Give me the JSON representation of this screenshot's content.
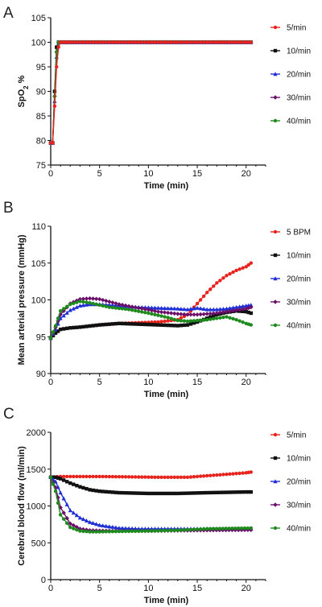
{
  "chart_data": [
    {
      "type": "line",
      "panel": "A",
      "xlabel": "Time (min)",
      "ylabel": "SpO",
      "ylabel_sub": "2",
      "ylabel_suffix": " %",
      "xlim": [
        0,
        22
      ],
      "ylim": [
        75,
        105
      ],
      "xticks": [
        0,
        5,
        10,
        15,
        20
      ],
      "yticks": [
        75,
        80,
        85,
        90,
        95,
        100,
        105
      ],
      "series": [
        {
          "name": "5/min",
          "color": "#e8231e",
          "marker": "circle",
          "x": [
            0,
            0.2,
            0.4,
            0.6,
            0.8,
            1,
            1.2,
            1.5,
            2,
            4,
            8,
            12,
            16,
            20.5
          ],
          "y": [
            79.5,
            79.5,
            87,
            95,
            99,
            100,
            100,
            100,
            100,
            100,
            100,
            100,
            100,
            100
          ]
        },
        {
          "name": "10/min",
          "color": "#111111",
          "marker": "square",
          "x": [
            0,
            0.2,
            0.4,
            0.6,
            0.8,
            1,
            1.2,
            1.5,
            2,
            4,
            8,
            12,
            16,
            20.5
          ],
          "y": [
            79.5,
            79.5,
            90,
            99,
            100,
            100,
            100,
            100,
            100,
            100,
            100,
            100,
            100,
            100
          ]
        },
        {
          "name": "20/min",
          "color": "#1f2fd6",
          "marker": "triangle",
          "x": [
            0,
            0.2,
            0.4,
            0.6,
            0.8,
            1,
            1.2,
            1.5,
            2,
            4,
            8,
            12,
            16,
            20.5
          ],
          "y": [
            79.5,
            79.5,
            88,
            97,
            100,
            100,
            100,
            100,
            100,
            100,
            100,
            100,
            100,
            100
          ]
        },
        {
          "name": "30/min",
          "color": "#6b0f6b",
          "marker": "diamond",
          "x": [
            0,
            0.2,
            0.4,
            0.6,
            0.8,
            1,
            1.2,
            1.5,
            2,
            4,
            8,
            12,
            16,
            20.5
          ],
          "y": [
            79.5,
            79.5,
            89,
            98,
            100,
            100,
            100,
            100,
            100,
            100,
            100,
            100,
            100,
            100
          ]
        },
        {
          "name": "40/min",
          "color": "#1e8a1e",
          "marker": "circle",
          "x": [
            0,
            0.2,
            0.4,
            0.6,
            0.8,
            1,
            1.2,
            1.5,
            2,
            4,
            8,
            12,
            16,
            20.5
          ],
          "y": [
            79.5,
            79.5,
            89,
            98,
            100,
            100,
            100,
            100,
            100,
            100,
            100,
            100,
            100,
            100
          ]
        }
      ]
    },
    {
      "type": "line",
      "panel": "B",
      "xlabel": "Time (min)",
      "ylabel": "Mean arterial pressure (mmHg)",
      "xlim": [
        0,
        22
      ],
      "ylim": [
        90,
        110
      ],
      "xticks": [
        0,
        5,
        10,
        15,
        20
      ],
      "yticks": [
        90,
        95,
        100,
        105,
        110
      ],
      "series": [
        {
          "name": "5 BPM",
          "color": "#e8231e",
          "marker": "circle",
          "x": [
            0,
            0.5,
            1,
            2,
            3,
            5,
            7,
            9,
            11,
            13,
            14,
            15,
            16,
            17,
            18,
            19,
            20,
            20.5
          ],
          "y": [
            94.8,
            95.5,
            96,
            96.2,
            96.3,
            96.6,
            96.8,
            96.9,
            97,
            97.3,
            98,
            99.5,
            101,
            102.3,
            103.3,
            104,
            104.5,
            105
          ]
        },
        {
          "name": "10/min",
          "color": "#111111",
          "marker": "square",
          "x": [
            0,
            0.5,
            1,
            2,
            3,
            5,
            7,
            9,
            11,
            13,
            14,
            15,
            16,
            17,
            18,
            19,
            20,
            20.5
          ],
          "y": [
            94.8,
            95.5,
            96,
            96.2,
            96.3,
            96.6,
            96.8,
            96.7,
            96.6,
            96.5,
            96.6,
            97,
            97.5,
            98,
            98.3,
            98.5,
            98.4,
            98.2
          ]
        },
        {
          "name": "20/min",
          "color": "#1f2fd6",
          "marker": "triangle",
          "x": [
            0,
            0.5,
            1,
            2,
            3,
            4,
            5,
            7,
            9,
            11,
            13,
            14,
            15,
            16,
            17,
            18,
            19,
            20,
            20.5
          ],
          "y": [
            94.8,
            96,
            97.5,
            98.6,
            99.2,
            99.4,
            99.4,
            99.2,
            99,
            98.9,
            98.8,
            98.7,
            98.9,
            98.7,
            98.7,
            98.8,
            99,
            99.2,
            99.3
          ]
        },
        {
          "name": "30/min",
          "color": "#6b0f6b",
          "marker": "diamond",
          "x": [
            0,
            0.5,
            1,
            2,
            3,
            4,
            5,
            7,
            9,
            11,
            13,
            14,
            15,
            16,
            17,
            18,
            19,
            20,
            20.5
          ],
          "y": [
            94.8,
            96.3,
            98,
            99.5,
            100.1,
            100.2,
            100.1,
            99.4,
            98.9,
            98.4,
            98.1,
            98,
            98,
            98.1,
            98.2,
            98.4,
            98.6,
            98.8,
            99
          ]
        },
        {
          "name": "40/min",
          "color": "#1e8a1e",
          "marker": "circle",
          "x": [
            0,
            0.5,
            1,
            2,
            3,
            4,
            5,
            6,
            8,
            10,
            12,
            13,
            14,
            15,
            16,
            17,
            18,
            19,
            20,
            20.5
          ],
          "y": [
            94.8,
            96.5,
            98.5,
            99.4,
            99.8,
            99.6,
            99.3,
            99,
            98.7,
            98.2,
            97.6,
            97.2,
            97.1,
            97.2,
            97.3,
            97.5,
            97.7,
            97.3,
            96.8,
            96.6
          ]
        }
      ]
    },
    {
      "type": "line",
      "panel": "C",
      "xlabel": "Time (min)",
      "ylabel": "Cerebral blood flow (ml/min)",
      "xlim": [
        0,
        22
      ],
      "ylim": [
        0,
        2000
      ],
      "xticks": [
        0,
        5,
        10,
        15,
        20
      ],
      "yticks": [
        0,
        500,
        1000,
        1500,
        2000
      ],
      "series": [
        {
          "name": "5/min",
          "color": "#e8231e",
          "marker": "circle",
          "x": [
            0,
            1,
            3,
            5,
            8,
            11,
            14,
            16,
            18,
            20,
            20.5
          ],
          "y": [
            1390,
            1400,
            1400,
            1400,
            1395,
            1390,
            1390,
            1410,
            1430,
            1450,
            1460
          ]
        },
        {
          "name": "10/min",
          "color": "#111111",
          "marker": "square",
          "x": [
            0,
            0.5,
            1,
            2,
            3,
            4,
            5,
            7,
            10,
            13,
            16,
            20,
            20.5
          ],
          "y": [
            1390,
            1390,
            1370,
            1310,
            1260,
            1220,
            1200,
            1180,
            1170,
            1170,
            1180,
            1190,
            1190
          ]
        },
        {
          "name": "20/min",
          "color": "#1f2fd6",
          "marker": "triangle",
          "x": [
            0,
            0.5,
            1,
            2,
            3,
            4,
            5,
            7,
            9,
            12,
            15,
            18,
            20.5
          ],
          "y": [
            1390,
            1330,
            1180,
            940,
            840,
            780,
            740,
            700,
            690,
            690,
            690,
            690,
            690
          ]
        },
        {
          "name": "30/min",
          "color": "#6b0f6b",
          "marker": "diamond",
          "x": [
            0,
            0.5,
            1,
            2,
            3,
            4,
            5,
            7,
            10,
            13,
            16,
            20.5
          ],
          "y": [
            1390,
            1250,
            980,
            760,
            690,
            670,
            665,
            660,
            660,
            665,
            670,
            675
          ]
        },
        {
          "name": "40/min",
          "color": "#1e8a1e",
          "marker": "circle",
          "x": [
            0,
            0.5,
            1,
            2,
            3,
            4,
            5,
            7,
            10,
            13,
            16,
            20.5
          ],
          "y": [
            1390,
            1200,
            880,
            710,
            660,
            650,
            650,
            655,
            660,
            670,
            690,
            700
          ]
        }
      ]
    }
  ]
}
